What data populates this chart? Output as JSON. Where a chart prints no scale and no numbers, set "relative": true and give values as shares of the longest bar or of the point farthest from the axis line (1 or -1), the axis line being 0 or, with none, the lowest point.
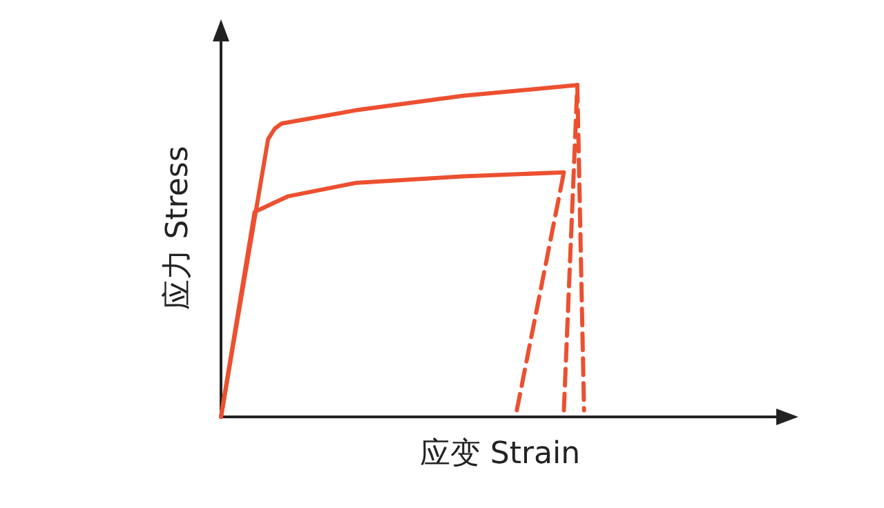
{
  "chart_data": {
    "type": "line",
    "relative": true,
    "xlabel": "应变 Strain",
    "ylabel": "应力 Stress",
    "grid": false,
    "marker": "none",
    "categories": [
      null,
      null,
      null,
      null,
      null,
      null,
      null,
      null,
      null,
      null,
      null,
      null,
      null,
      null,
      null,
      null,
      null,
      null,
      null,
      null,
      null,
      null,
      null,
      null,
      null,
      null,
      null,
      null,
      null,
      null,
      null,
      null,
      null,
      null,
      null,
      null,
      null,
      null,
      null,
      null,
      null,
      null,
      null,
      null,
      null,
      null,
      null,
      null,
      null,
      null,
      null,
      null,
      null,
      null,
      null,
      null,
      null,
      null,
      null,
      null,
      null,
      null,
      null,
      null,
      null,
      null,
      null,
      null,
      null,
      null,
      null,
      null,
      null,
      null,
      null,
      null,
      null,
      null,
      null,
      null,
      null,
      null,
      null,
      null
    ],
    "series": [
      {
        "color": "#ec5030",
        "line_style": "solid",
        "values": [
          0,
          null,
          null,
          null,
          null,
          null,
          null,
          0.837,
          0.869,
          0.884,
          null,
          null,
          null,
          null,
          null,
          null,
          null,
          null,
          null,
          null,
          0.924,
          null,
          null,
          null,
          null,
          null,
          null,
          null,
          null,
          null,
          null,
          null,
          null,
          null,
          null,
          null,
          0.968,
          null,
          null,
          null,
          null,
          null,
          null,
          null,
          null,
          null,
          null,
          null,
          null,
          null,
          null,
          null,
          null,
          1.0,
          null,
          null,
          null,
          null,
          null,
          null,
          null,
          null,
          null,
          null,
          null,
          null,
          null,
          null,
          null,
          null,
          null,
          null,
          null,
          null,
          null,
          null,
          null,
          null,
          null,
          null,
          null,
          null,
          null,
          null
        ]
      },
      {
        "color": "#ec5030",
        "line_style": "solid",
        "values": [
          0,
          null,
          null,
          null,
          null,
          0.618,
          null,
          null,
          null,
          null,
          0.665,
          null,
          null,
          null,
          null,
          null,
          null,
          null,
          null,
          null,
          0.705,
          null,
          null,
          null,
          null,
          null,
          null,
          null,
          null,
          null,
          null,
          null,
          null,
          null,
          null,
          null,
          0.725,
          null,
          null,
          null,
          null,
          null,
          null,
          null,
          null,
          null,
          null,
          null,
          null,
          null,
          null,
          0.737,
          null,
          null,
          null,
          null,
          null,
          null,
          null,
          null,
          null,
          null,
          null,
          null,
          null,
          null,
          null,
          null,
          null,
          null,
          null,
          null,
          null,
          null,
          null,
          null,
          null,
          null,
          null,
          null,
          null,
          null,
          null,
          null
        ]
      },
      {
        "color": "#ec5030",
        "line_style": "dashed",
        "values": [
          null,
          null,
          null,
          null,
          null,
          null,
          null,
          null,
          null,
          null,
          null,
          null,
          null,
          null,
          null,
          null,
          null,
          null,
          null,
          null,
          null,
          null,
          null,
          null,
          null,
          null,
          null,
          null,
          null,
          null,
          null,
          null,
          null,
          null,
          null,
          null,
          null,
          null,
          null,
          null,
          null,
          null,
          null,
          null,
          0.02,
          null,
          null,
          null,
          null,
          null,
          null,
          0.737,
          null,
          null,
          null,
          null,
          null,
          null,
          null,
          null,
          null,
          null,
          null,
          null,
          null,
          null,
          null,
          null,
          null,
          null,
          null,
          null,
          null,
          null,
          null,
          null,
          null,
          null,
          null,
          null,
          null,
          null,
          null,
          null
        ]
      },
      {
        "color": "#ec5030",
        "line_style": "dashed",
        "values": [
          null,
          null,
          null,
          null,
          null,
          null,
          null,
          null,
          null,
          null,
          null,
          null,
          null,
          null,
          null,
          null,
          null,
          null,
          null,
          null,
          null,
          null,
          null,
          null,
          null,
          null,
          null,
          null,
          null,
          null,
          null,
          null,
          null,
          null,
          null,
          null,
          null,
          null,
          null,
          null,
          null,
          null,
          null,
          null,
          null,
          null,
          null,
          null,
          null,
          null,
          null,
          0.02,
          null,
          1.0,
          null,
          null,
          null,
          null,
          null,
          null,
          null,
          null,
          null,
          null,
          null,
          null,
          null,
          null,
          null,
          null,
          null,
          null,
          null,
          null,
          null,
          null,
          null,
          null,
          null,
          null,
          null,
          null,
          null,
          null
        ]
      },
      {
        "color": "#ec5030",
        "line_style": "dashed",
        "values": [
          null,
          null,
          null,
          null,
          null,
          null,
          null,
          null,
          null,
          null,
          null,
          null,
          null,
          null,
          null,
          null,
          null,
          null,
          null,
          null,
          null,
          null,
          null,
          null,
          null,
          null,
          null,
          null,
          null,
          null,
          null,
          null,
          null,
          null,
          null,
          null,
          null,
          null,
          null,
          null,
          null,
          null,
          null,
          null,
          null,
          null,
          null,
          null,
          null,
          null,
          null,
          null,
          null,
          1.0,
          0.02,
          null,
          null,
          null,
          null,
          null,
          null,
          null,
          null,
          null,
          null,
          null,
          null,
          null,
          null,
          null,
          null,
          null,
          null,
          null,
          null,
          null,
          null,
          null,
          null,
          null,
          null,
          null,
          null,
          null
        ]
      }
    ]
  }
}
